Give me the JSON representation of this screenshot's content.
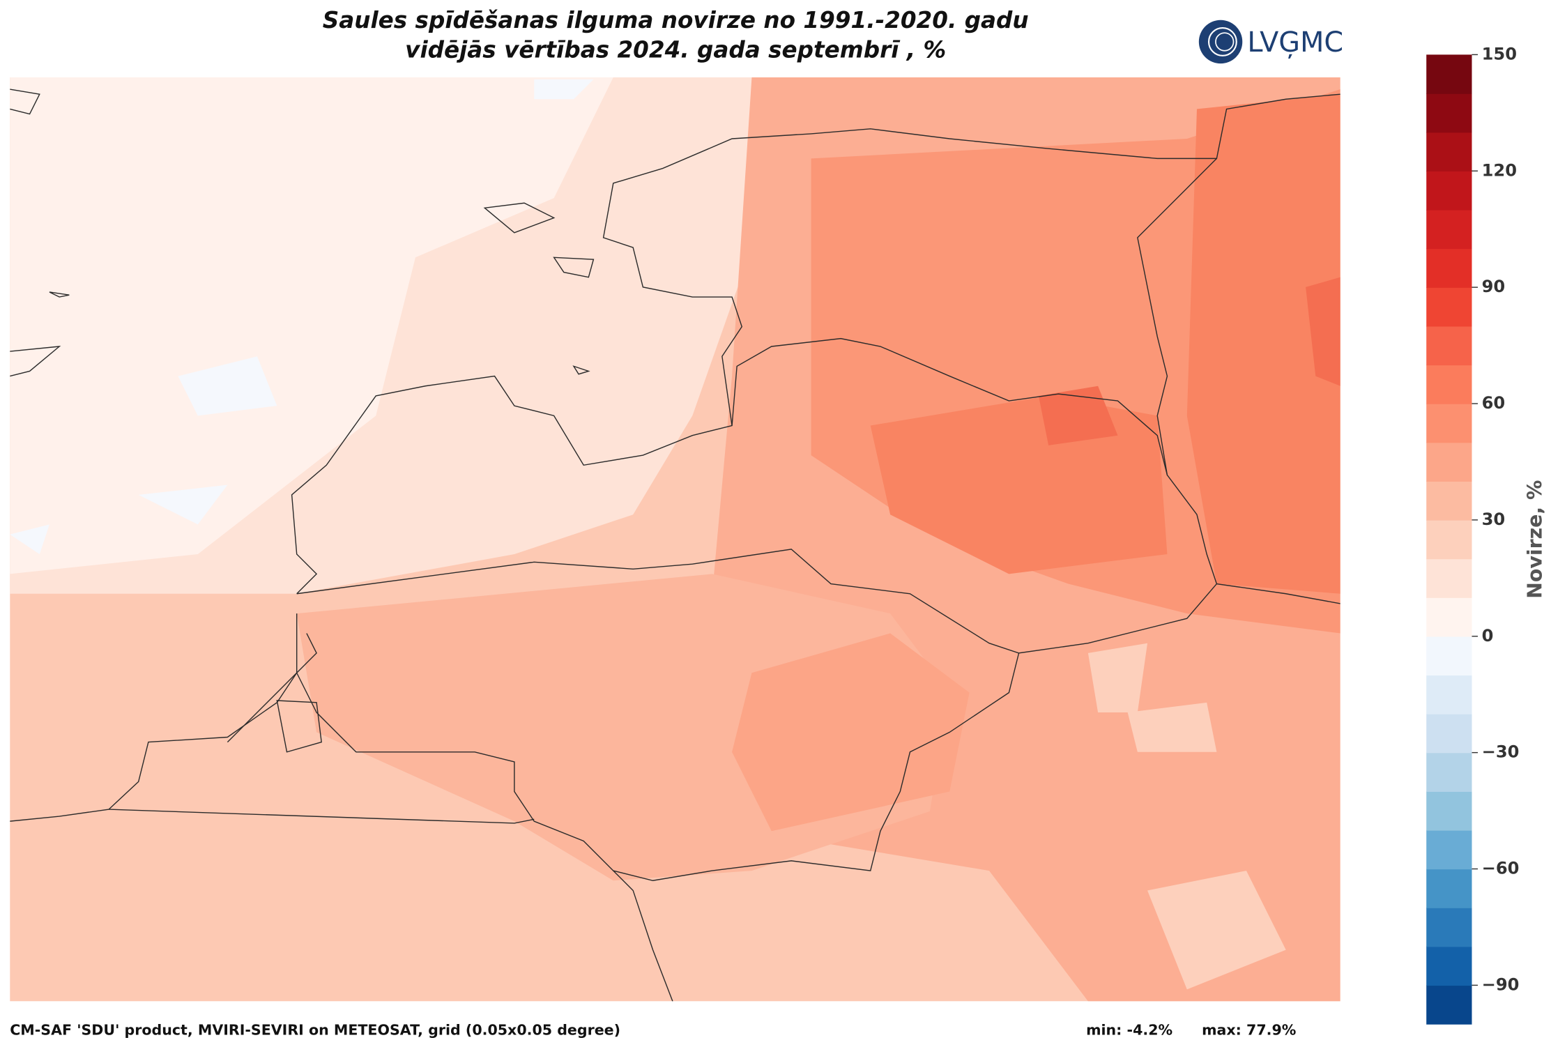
{
  "header": {
    "title_line1": "Saules spīdēšanas ilguma novirze no 1991.-2020. gadu",
    "title_line2": "vidējās vērtības 2024. gada septembrī , %",
    "logo": "LVĢMC"
  },
  "colorbar": {
    "label": "Novirze, %",
    "lim": [
      -100,
      150
    ],
    "ticks": [
      {
        "value": -90,
        "label": "−90"
      },
      {
        "value": -60,
        "label": "−60"
      },
      {
        "value": -30,
        "label": "−30"
      },
      0,
      30,
      60,
      90,
      120,
      150
    ],
    "colors": [
      "#08468c",
      "#1361a9",
      "#2a7ab9",
      "#4594c7",
      "#69acd5",
      "#92c4de",
      "#b3d3e8",
      "#cde0f1",
      "#deebf7",
      "#f2f7fd",
      "#fff4ef",
      "#fee3d7",
      "#fdd0bc",
      "#fcbba1",
      "#fca689",
      "#fc9070",
      "#fb7c5c",
      "#f6634a",
      "#ef4533",
      "#e32f27",
      "#d42121",
      "#c1161b",
      "#ab1016",
      "#8e0912",
      "#760710"
    ]
  },
  "footer": {
    "source": "CM-SAF 'SDU' product, MVIRI-SEVIRI on METEOSAT, grid (0.05x0.05 degree)",
    "min": "min: -4.2%",
    "max": "max: 77.9%"
  }
}
